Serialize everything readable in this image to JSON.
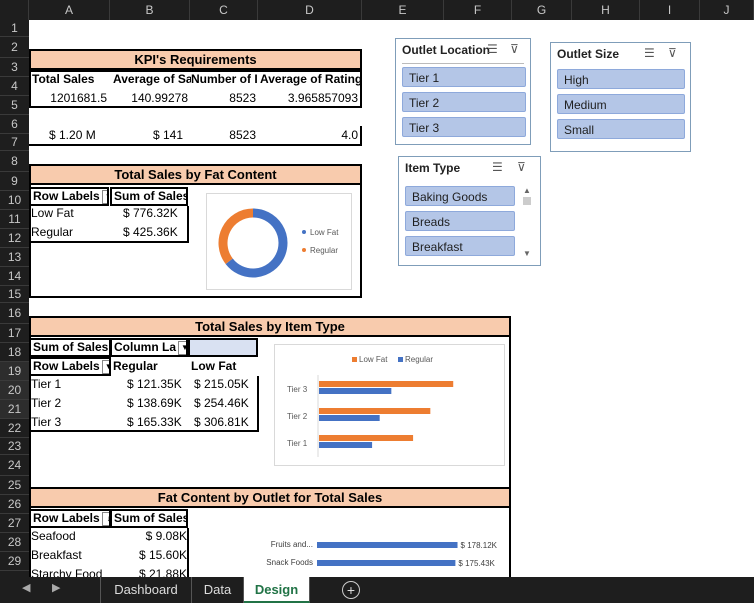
{
  "columns": [
    "A",
    "B",
    "C",
    "D",
    "E",
    "F",
    "G",
    "H",
    "I",
    "J"
  ],
  "rows": [
    "1",
    "2",
    "3",
    "4",
    "5",
    "6",
    "7",
    "8",
    "9",
    "10",
    "11",
    "12",
    "13",
    "14",
    "15",
    "16",
    "17",
    "18",
    "19",
    "20",
    "21",
    "22",
    "23",
    "24",
    "25",
    "26",
    "27",
    "28",
    "29"
  ],
  "kpi": {
    "title": "KPI's Requirements",
    "headers": [
      "Total Sales",
      "Average of Sa",
      "Number of I",
      "Average of Rating"
    ],
    "raw": [
      "1201681.5",
      "140.99278",
      "8523",
      "3.965857093"
    ],
    "formatted": [
      "$  1.20  M",
      "$  141",
      "8523",
      "4.0"
    ]
  },
  "fat": {
    "title": "Total Sales by Fat Content",
    "header_label": "Row Labels",
    "header_sum": "Sum of Sales",
    "rows": [
      {
        "label": "Low  Fat",
        "value": "$  776.32K"
      },
      {
        "label": "Regular",
        "value": "$  425.36K"
      }
    ],
    "chart_legend": [
      "Low Fat",
      "Regular"
    ]
  },
  "itemtype": {
    "title": "Total Sales by Item Type",
    "h1": "Sum of Sales",
    "h2": "Column La",
    "h3": "Row Labels",
    "c1": "Regular",
    "c2": "Low Fat",
    "rows": [
      {
        "label": "Tier  1",
        "reg": "$  121.35K",
        "low": "$  215.05K"
      },
      {
        "label": "Tier  2",
        "reg": "$  138.69K",
        "low": "$  254.46K"
      },
      {
        "label": "Tier  3",
        "reg": "$  165.33K",
        "low": "$  306.81K"
      }
    ],
    "legend": [
      "Low Fat",
      "Regular"
    ]
  },
  "outlet": {
    "title": "Fat Content by Outlet for Total Sales",
    "h1": "Row Labels",
    "h2": "Sum of Sales",
    "rows": [
      {
        "label": "Seafood",
        "value": "$  9.08K"
      },
      {
        "label": "Breakfast",
        "value": "$  15.60K"
      },
      {
        "label": "Starchy  Food",
        "value": "$  21.88K"
      }
    ],
    "bars": [
      {
        "label": "Fruits and...",
        "value": "$ 178.12K"
      },
      {
        "label": "Snack Foods",
        "value": "$ 175.43K"
      }
    ]
  },
  "slicers": {
    "location": {
      "title": "Outlet Location",
      "items": [
        "Tier  1",
        "Tier  2",
        "Tier  3"
      ]
    },
    "size": {
      "title": "Outlet Size",
      "items": [
        "High",
        "Medium",
        "Small"
      ]
    },
    "itemtype": {
      "title": "Item Type",
      "items": [
        "Baking  Goods",
        "Breads",
        "Breakfast"
      ]
    }
  },
  "tabs": [
    "Dashboard",
    "Data",
    "Design"
  ],
  "chart_data": [
    {
      "type": "pie",
      "categories": [
        "Low Fat",
        "Regular"
      ],
      "values": [
        776.32,
        425.36
      ]
    },
    {
      "type": "bar",
      "categories": [
        "Tier 1",
        "Tier 2",
        "Tier 3"
      ],
      "series": [
        {
          "name": "Low Fat",
          "values": [
            215.05,
            254.46,
            306.81
          ]
        },
        {
          "name": "Regular",
          "values": [
            121.35,
            138.69,
            165.33
          ]
        }
      ]
    },
    {
      "type": "bar",
      "categories": [
        "Fruits and...",
        "Snack Foods"
      ],
      "values": [
        178.12,
        175.43
      ]
    }
  ]
}
